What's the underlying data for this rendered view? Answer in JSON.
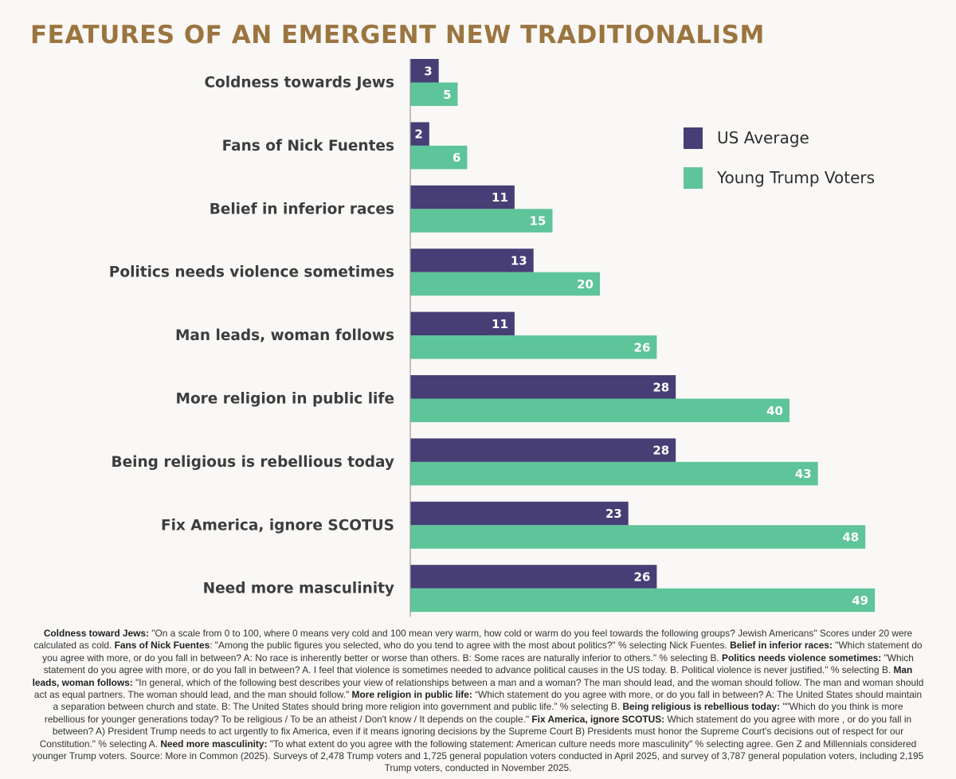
{
  "title": "FEATURES OF AN EMERGENT NEW TRADITIONALISM",
  "colors": {
    "title": "#9b7540",
    "us_average": "#463e74",
    "young_trump": "#5ec49a"
  },
  "chart_data": {
    "type": "bar",
    "orientation": "horizontal",
    "categories": [
      "Coldness towards Jews",
      "Fans of Nick Fuentes",
      "Belief in inferior races",
      "Politics needs violence sometimes",
      "Man leads, woman follows",
      "More religion in public life",
      "Being religious is rebellious today",
      "Fix America, ignore SCOTUS",
      "Need more masculinity"
    ],
    "series": [
      {
        "name": "US Average",
        "color": "#463e74",
        "values": [
          3,
          2,
          11,
          13,
          11,
          28,
          28,
          23,
          26
        ]
      },
      {
        "name": "Young Trump Voters",
        "color": "#5ec49a",
        "values": [
          5,
          6,
          15,
          20,
          26,
          40,
          43,
          48,
          49
        ]
      }
    ],
    "xlim": [
      0,
      50
    ],
    "data_labels": true,
    "legend_position": "top-right",
    "grid": false
  },
  "notes": [
    {
      "b": "Coldness toward Jews:",
      "t": " \"On a scale from 0 to 100, where 0 means very cold and 100 mean very warm, how cold or warm do you feel towards the following groups? Jewish Americans\" Scores under 20 were calculated as cold. "
    },
    {
      "b": "Fans of Nick Fuentes",
      "t": ": \"Among the public figures you selected, who do you tend to agree with the most about politics?\" % selecting Nick Fuentes. "
    },
    {
      "b": "Belief in inferior races:",
      "t": " \"Which statement do you agree with more, or do you fall in between? A: No race is inherently better or worse than others. B: Some races are naturally inferior to others.\" % selecting B. "
    },
    {
      "b": "Politics needs violence sometimes:",
      "t": " \"Which statement do you agree with more, or do you fall in between? A. I feel that violence is sometimes needed to advance political causes in the US today. B. Political violence is never justified.\" % selecting B. "
    },
    {
      "b": "Man leads, woman follows:",
      "t": " \"In general, which of the following best describes your view of relationships between a man and a woman? The man should lead, and the woman should follow. The man and woman should act as equal partners. The woman should lead, and the man should follow.\" "
    },
    {
      "b": "More religion in public life:",
      "t": " “Which statement do you agree with more, or do you fall in between? A: The United States should maintain a separation between church and state. B: The United States should bring more religion into government and public life.” % selecting B. "
    },
    {
      "b": "Being religious is rebellious today:",
      "t": " \"\"Which do you think is more rebellious for younger generations today? To be religious / To be an atheist / Don't know / It depends on the couple.\" "
    },
    {
      "b": "Fix America, ignore SCOTUS:",
      "t": " Which statement do you agree with more , or do you fall in between? A) President Trump needs to act urgently to fix America, even if it means ignoring decisions by the Supreme Court B) Presidents must honor the Supreme Court's decisions out of respect for our Constitution.\" % selecting A. "
    },
    {
      "b": "Need more masculinity:",
      "t": " \"To what extent do you agree with the following statement: American culture needs more masculinity\" % selecting agree. Gen Z and Millennials considered younger Trump voters. Source: More in Common (2025). Surveys of 2,478 Trump voters and 1,725 general population voters conducted in April 2025, and survey of 3,787 general population voters, including 2,195 Trump voters, conducted in November 2025."
    }
  ]
}
